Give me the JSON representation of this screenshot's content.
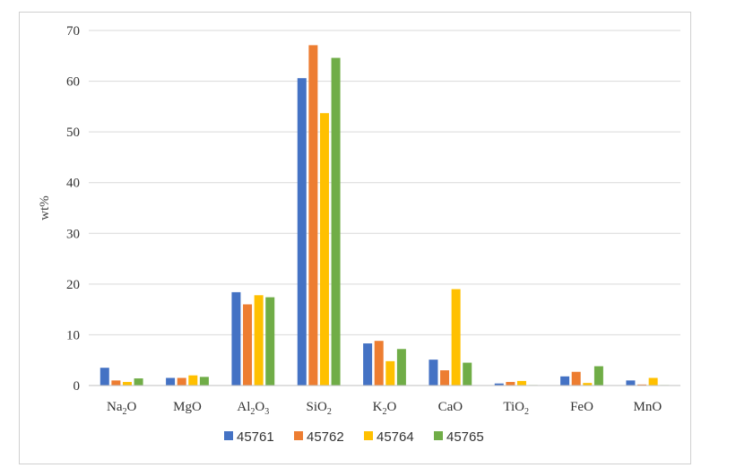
{
  "chart_data": {
    "type": "bar",
    "title": "",
    "xlabel": "",
    "ylabel": "wt%",
    "ylim": [
      0,
      70
    ],
    "yticks": [
      0,
      10,
      20,
      30,
      40,
      50,
      60,
      70
    ],
    "grid": true,
    "legend_position": "bottom",
    "categories": [
      {
        "base": "Na",
        "sub": "2",
        "tail": "O"
      },
      {
        "base": "MgO",
        "sub": "",
        "tail": ""
      },
      {
        "base": "Al",
        "sub": "2",
        "tail": "O",
        "sub2": "3"
      },
      {
        "base": "SiO",
        "sub": "2",
        "tail": ""
      },
      {
        "base": "K",
        "sub": "2",
        "tail": "O"
      },
      {
        "base": "CaO",
        "sub": "",
        "tail": ""
      },
      {
        "base": "TiO",
        "sub": "2",
        "tail": ""
      },
      {
        "base": "FeO",
        "sub": "",
        "tail": ""
      },
      {
        "base": "MnO",
        "sub": "",
        "tail": ""
      }
    ],
    "series": [
      {
        "name": "45761",
        "color": "#4472c4",
        "values": [
          3.5,
          1.5,
          18.4,
          60.6,
          8.3,
          5.1,
          0.4,
          1.8,
          1.0
        ]
      },
      {
        "name": "45762",
        "color": "#ed7d31",
        "values": [
          1.0,
          1.5,
          16.0,
          67.1,
          8.8,
          3.0,
          0.7,
          2.7,
          0.2
        ]
      },
      {
        "name": "45764",
        "color": "#ffc000",
        "values": [
          0.7,
          2.0,
          17.8,
          53.7,
          4.8,
          19.0,
          0.9,
          0.5,
          1.5
        ]
      },
      {
        "name": "45765",
        "color": "#70ad47",
        "values": [
          1.4,
          1.7,
          17.4,
          64.6,
          7.2,
          4.5,
          0.1,
          3.8,
          0.1
        ]
      }
    ]
  }
}
